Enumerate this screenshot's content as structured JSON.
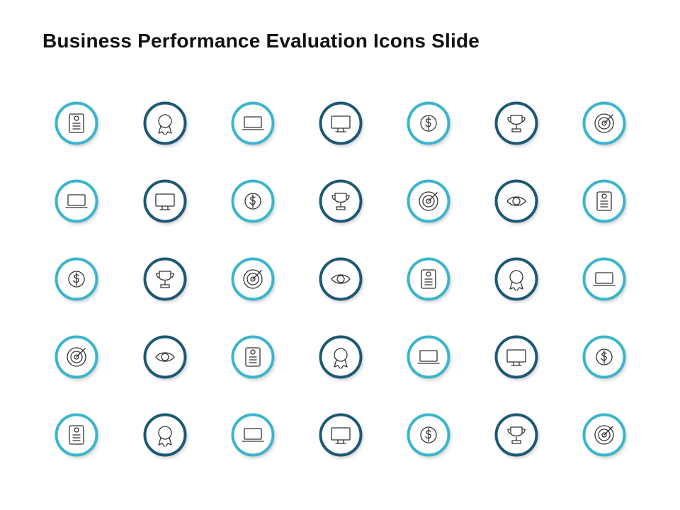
{
  "header": {
    "title": "Business Performance Evaluation Icons Slide"
  }
}
